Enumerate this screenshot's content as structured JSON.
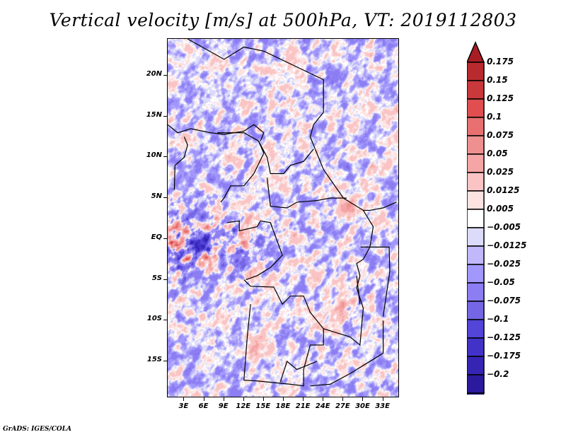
{
  "chart_data": {
    "type": "heatmap",
    "title": "Vertical velocity [m/s] at 500hPa, VT: 2019112803",
    "variable": "Vertical velocity",
    "units": "m/s",
    "level": "500hPa",
    "valid_time": "2019112803",
    "x_axis": {
      "ticks": [
        "3E",
        "6E",
        "9E",
        "12E",
        "15E",
        "18E",
        "21E",
        "24E",
        "27E",
        "30E",
        "33E"
      ],
      "tick_values": [
        3,
        6,
        9,
        12,
        15,
        18,
        21,
        24,
        27,
        30,
        33
      ],
      "range": [
        0.5,
        35.5
      ]
    },
    "y_axis": {
      "ticks": [
        "20N",
        "15N",
        "10N",
        "5N",
        "EQ",
        "5S",
        "10S",
        "15S"
      ],
      "tick_values": [
        20,
        15,
        10,
        5,
        0,
        -5,
        -10,
        -15
      ],
      "range": [
        -19.5,
        24.5
      ]
    },
    "colorbar": {
      "orientation": "vertical",
      "position": "right",
      "extend": "both",
      "labels": [
        "0.175",
        "0.15",
        "0.125",
        "0.1",
        "0.075",
        "0.05",
        "0.025",
        "0.0125",
        "0.005",
        "-0.005",
        "-0.0125",
        "-0.025",
        "-0.05",
        "-0.075",
        "-0.1",
        "-0.125",
        "-0.175",
        "-0.2"
      ],
      "levels": [
        0.175,
        0.15,
        0.125,
        0.1,
        0.075,
        0.05,
        0.025,
        0.0125,
        0.005,
        -0.005,
        -0.0125,
        -0.025,
        -0.05,
        -0.075,
        -0.1,
        -0.125,
        -0.175,
        -0.2
      ],
      "colors": [
        "#a81d24",
        "#b82a2e",
        "#c9383a",
        "#e04e50",
        "#e87070",
        "#ee9090",
        "#f5a5a5",
        "#fac4c4",
        "#fde2e2",
        "#ffffff",
        "#dcdcfa",
        "#c0b8fb",
        "#a297fb",
        "#8c7ef2",
        "#7566e6",
        "#5245d8",
        "#4332c8",
        "#3625b4",
        "#2b1a9e",
        "#20108a"
      ]
    },
    "grid": false,
    "legend": "right"
  },
  "footer": {
    "credit": "GrADS: IGES/COLA"
  }
}
